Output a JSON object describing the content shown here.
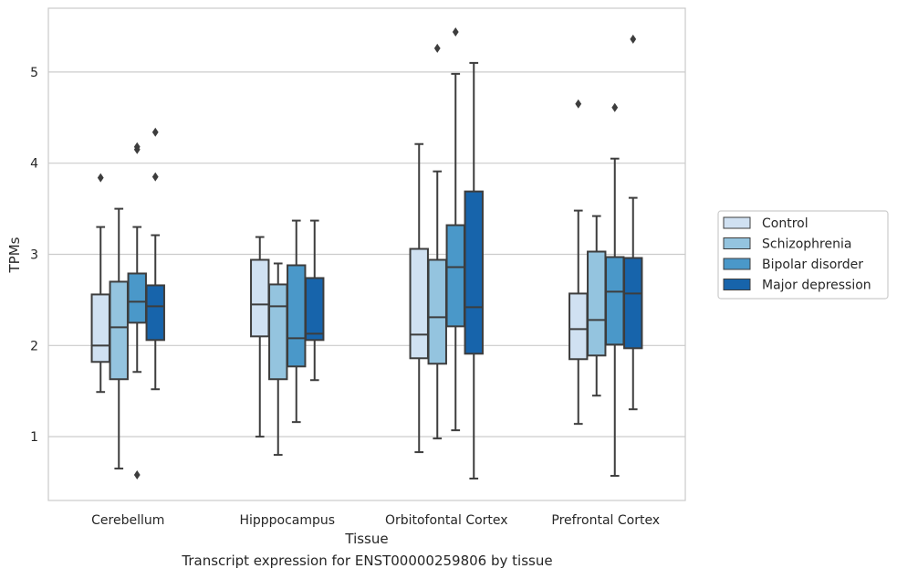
{
  "chart_data": {
    "type": "box",
    "xlabel": "Tissue",
    "ylabel": "TPMs",
    "ylim": [
      0.3,
      5.7
    ],
    "yticks": [
      1,
      2,
      3,
      4,
      5
    ],
    "grid": "horizontal",
    "legend_position": "right",
    "categories": [
      "Cerebellum",
      "Hipppocampus",
      "Orbitofontal Cortex",
      "Prefrontal Cortex"
    ],
    "series": [
      {
        "name": "Control",
        "color": "#d0e1f2",
        "boxes": [
          {
            "whislo": 1.49,
            "q1": 1.82,
            "med": 2.0,
            "q3": 2.56,
            "whishi": 3.3,
            "fliers": [
              3.84
            ]
          },
          {
            "whislo": 1.0,
            "q1": 2.1,
            "med": 2.45,
            "q3": 2.94,
            "whishi": 3.19,
            "fliers": []
          },
          {
            "whislo": 0.83,
            "q1": 1.86,
            "med": 2.12,
            "q3": 3.06,
            "whishi": 4.21,
            "fliers": []
          },
          {
            "whislo": 1.14,
            "q1": 1.85,
            "med": 2.18,
            "q3": 2.57,
            "whishi": 3.48,
            "fliers": [
              4.65
            ]
          }
        ]
      },
      {
        "name": "Schizophrenia",
        "color": "#94c4df",
        "boxes": [
          {
            "whislo": 0.65,
            "q1": 1.63,
            "med": 2.2,
            "q3": 2.7,
            "whishi": 3.5,
            "fliers": []
          },
          {
            "whislo": 0.8,
            "q1": 1.63,
            "med": 2.43,
            "q3": 2.67,
            "whishi": 2.9,
            "fliers": []
          },
          {
            "whislo": 0.98,
            "q1": 1.8,
            "med": 2.31,
            "q3": 2.94,
            "whishi": 3.91,
            "fliers": [
              5.26
            ]
          },
          {
            "whislo": 1.45,
            "q1": 1.89,
            "med": 2.28,
            "q3": 3.03,
            "whishi": 3.42,
            "fliers": []
          }
        ]
      },
      {
        "name": "Bipolar disorder",
        "color": "#4a98c9",
        "boxes": [
          {
            "whislo": 1.71,
            "q1": 2.25,
            "med": 2.48,
            "q3": 2.79,
            "whishi": 3.3,
            "fliers": [
              0.58,
              4.15,
              4.18
            ]
          },
          {
            "whislo": 1.16,
            "q1": 1.77,
            "med": 2.08,
            "q3": 2.88,
            "whishi": 3.37,
            "fliers": []
          },
          {
            "whislo": 1.07,
            "q1": 2.21,
            "med": 2.86,
            "q3": 3.32,
            "whishi": 4.98,
            "fliers": [
              5.44
            ]
          },
          {
            "whislo": 0.57,
            "q1": 2.01,
            "med": 2.59,
            "q3": 2.97,
            "whishi": 4.05,
            "fliers": [
              4.61
            ]
          }
        ]
      },
      {
        "name": "Major depression",
        "color": "#1764ab",
        "boxes": [
          {
            "whislo": 1.52,
            "q1": 2.06,
            "med": 2.43,
            "q3": 2.66,
            "whishi": 3.21,
            "fliers": [
              3.85,
              4.34
            ]
          },
          {
            "whislo": 1.62,
            "q1": 2.06,
            "med": 2.13,
            "q3": 2.74,
            "whishi": 3.37,
            "fliers": []
          },
          {
            "whislo": 0.54,
            "q1": 1.91,
            "med": 2.42,
            "q3": 3.69,
            "whishi": 5.1,
            "fliers": []
          },
          {
            "whislo": 1.3,
            "q1": 1.97,
            "med": 2.57,
            "q3": 2.96,
            "whishi": 3.62,
            "fliers": [
              5.36
            ]
          }
        ]
      }
    ]
  },
  "caption": "Transcript expression for ENST00000259806 by tissue"
}
